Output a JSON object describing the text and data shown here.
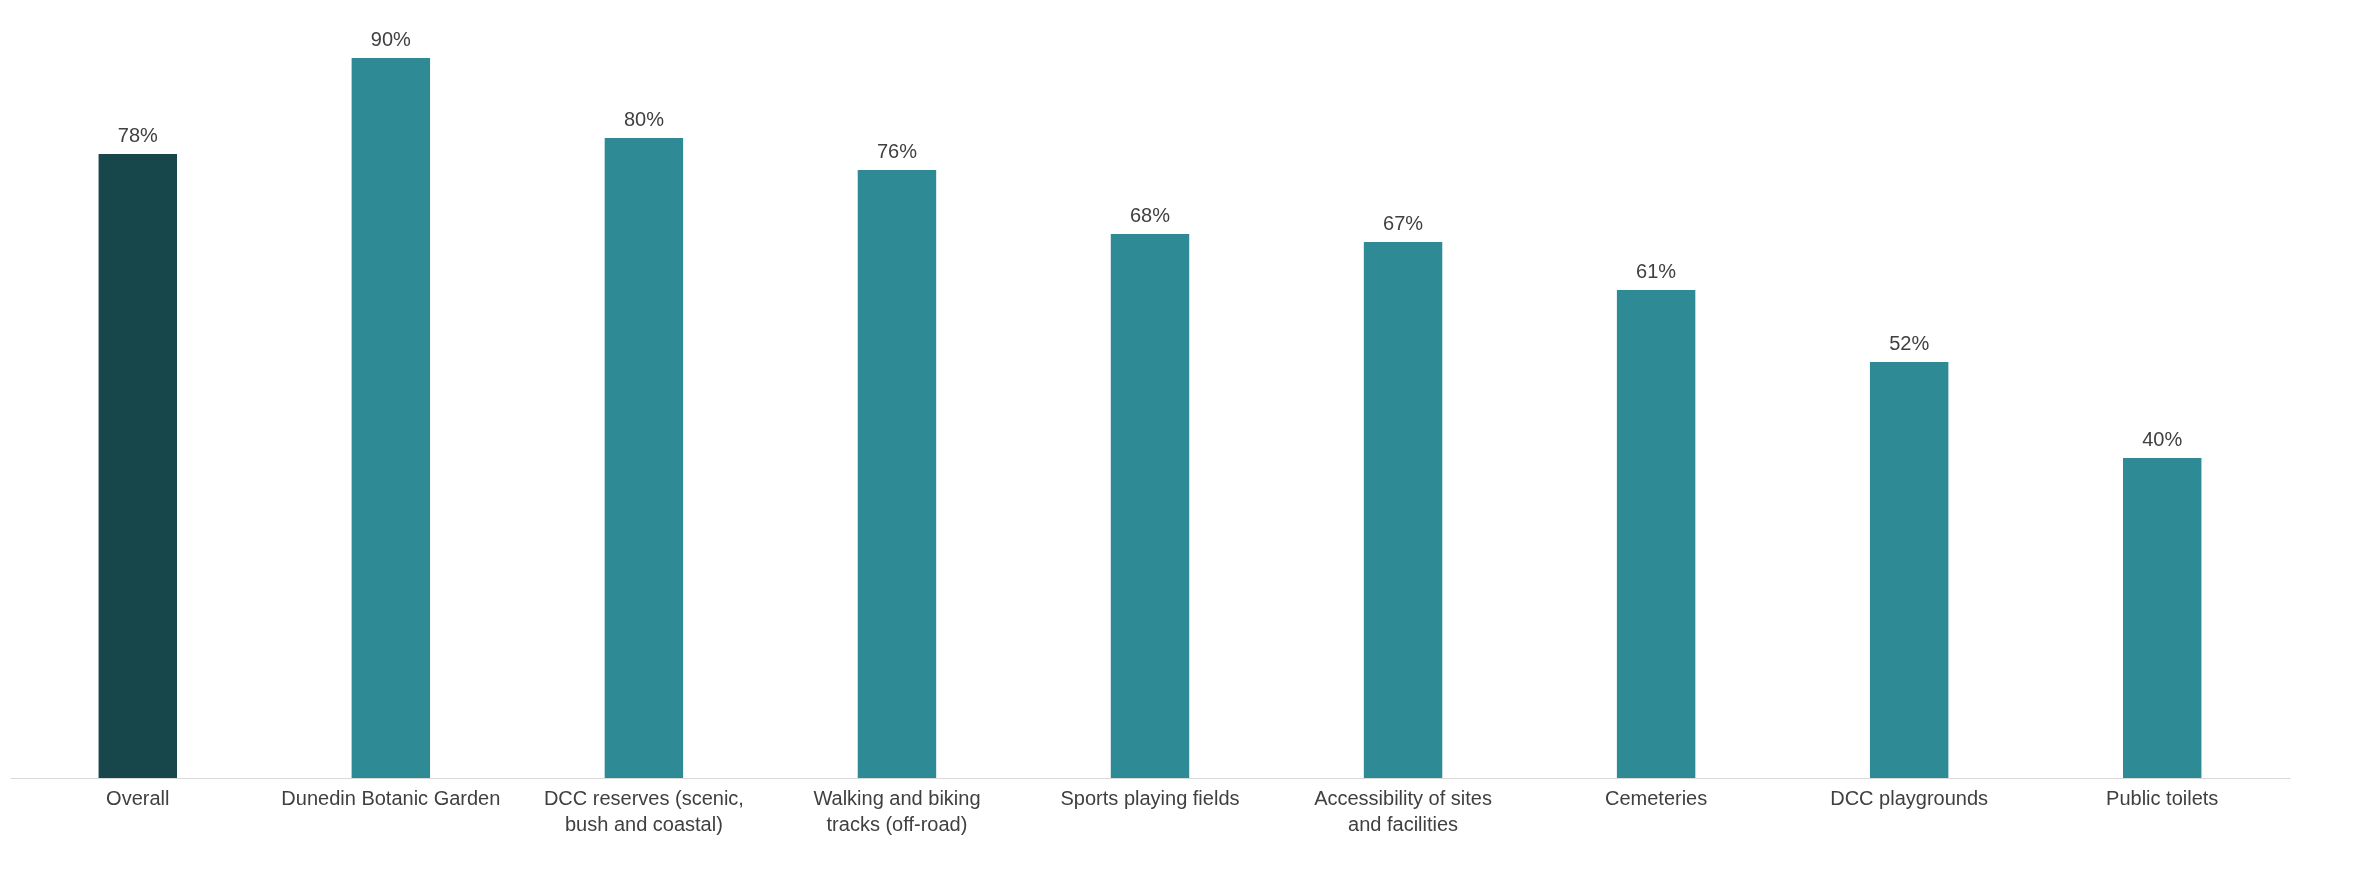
{
  "chart_data": {
    "type": "bar",
    "categories": [
      "Overall",
      "Dunedin Botanic Garden",
      "DCC reserves (scenic, bush and coastal)",
      "Walking and biking tracks (off-road)",
      "Sports playing fields",
      "Accessibility of sites and facilities",
      "Cemeteries",
      "DCC playgrounds",
      "Public toilets"
    ],
    "values": [
      78,
      90,
      80,
      76,
      68,
      67,
      61,
      52,
      40
    ],
    "colors": [
      "#17464b",
      "#2e8b96",
      "#2e8b96",
      "#2e8b96",
      "#2e8b96",
      "#2e8b96",
      "#2e8b96",
      "#2e8b96",
      "#2e8b96"
    ],
    "value_labels": [
      "78%",
      "90%",
      "80%",
      "76%",
      "68%",
      "67%",
      "61%",
      "52%",
      "40%"
    ],
    "grid": false
  }
}
